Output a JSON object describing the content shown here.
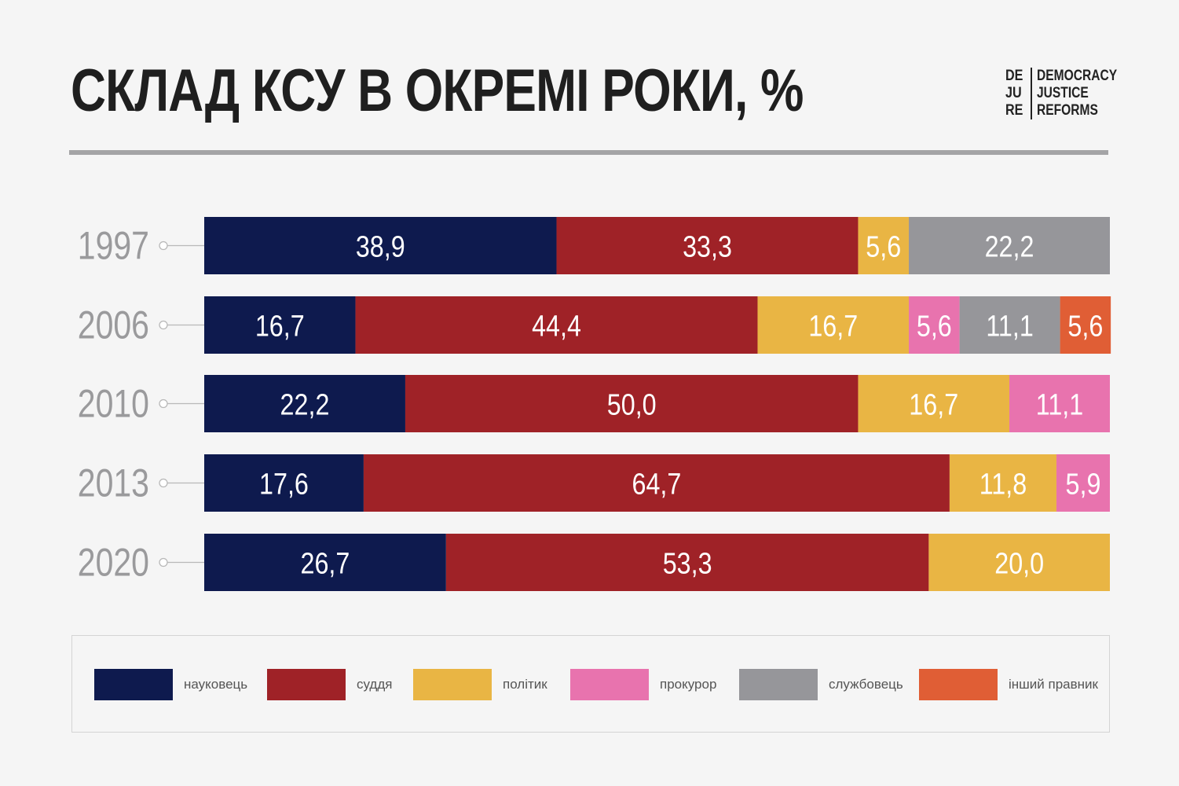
{
  "header": {
    "title": "СКЛАД КСУ В ОКРЕМІ РОКИ, %",
    "logo_left": [
      "DE",
      "JU",
      "RE"
    ],
    "logo_right": [
      "DEMOCRACY",
      "JUSTICE",
      "REFORMS"
    ]
  },
  "chart_data": {
    "type": "bar",
    "orientation": "horizontal",
    "stacked": true,
    "title": "СКЛАД КСУ В ОКРЕМІ РОКИ, %",
    "categories": [
      "1997",
      "2006",
      "2010",
      "2013",
      "2020"
    ],
    "series": [
      {
        "name": "науковець",
        "color": "#0e1a4e",
        "values": [
          38.9,
          16.7,
          22.2,
          17.6,
          26.7
        ],
        "labels": [
          "38,9",
          "16,7",
          "22,2",
          "17,6",
          "26,7"
        ]
      },
      {
        "name": "суддя",
        "color": "#9f2227",
        "values": [
          33.3,
          44.4,
          50.0,
          64.7,
          53.3
        ],
        "labels": [
          "33,3",
          "44,4",
          "50,0",
          "64,7",
          "53,3"
        ]
      },
      {
        "name": "політик",
        "color": "#e9b544",
        "values": [
          5.6,
          16.7,
          16.7,
          11.8,
          20.0
        ],
        "labels": [
          "5,6",
          "16,7",
          "16,7",
          "11,8",
          "20,0"
        ]
      },
      {
        "name": "прокурор",
        "color": "#e873ae",
        "values": [
          0,
          5.6,
          11.1,
          5.9,
          0
        ],
        "labels": [
          "",
          "5,6",
          "11,1",
          "5,9",
          ""
        ]
      },
      {
        "name": "службовець",
        "color": "#96969a",
        "values": [
          22.2,
          11.1,
          0,
          0,
          0
        ],
        "labels": [
          "22,2",
          "11,1",
          "",
          "",
          ""
        ]
      },
      {
        "name": "інший правник",
        "color": "#e05e35",
        "values": [
          0,
          5.6,
          0,
          0,
          0
        ],
        "labels": [
          "",
          "5,6",
          "",
          "",
          ""
        ]
      }
    ],
    "xlim": [
      0,
      100
    ],
    "legend_position": "bottom",
    "grid": false
  }
}
